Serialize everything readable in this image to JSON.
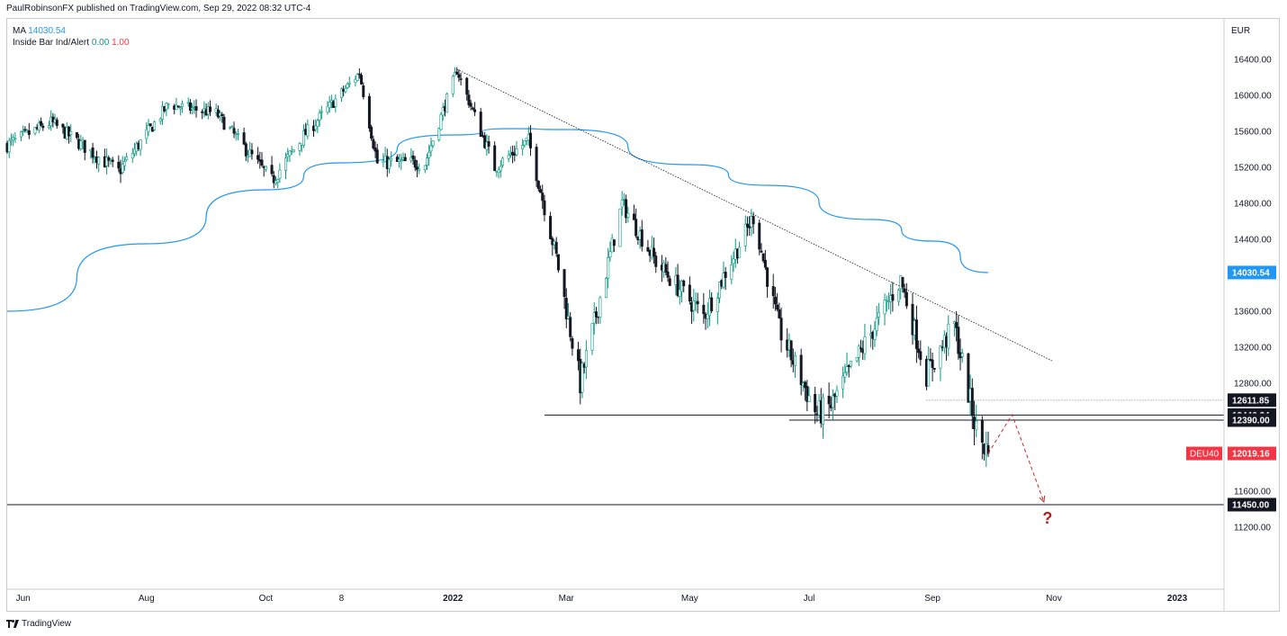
{
  "header": {
    "text": "PaulRobinsonFX published on TradingView.com, Sep 29, 2022 08:32 UTC-4"
  },
  "legend": {
    "ma_label": "MA",
    "ma_value": "14030.54",
    "ib_label": "Inside Bar Ind/Alert",
    "ib_v1": "0.00",
    "ib_v2": "1.00"
  },
  "footer": {
    "brand": "TradingView"
  },
  "colors": {
    "up": "#089981",
    "down": "#131722",
    "ma": "#2196f3",
    "alert": "#f23645",
    "projection": "#c62828"
  },
  "chart_data": {
    "type": "candlestick",
    "symbol": "DEU40",
    "currency": "EUR",
    "y_ticks": [
      11200,
      11600,
      12000,
      12400,
      12800,
      13200,
      13600,
      14000,
      14400,
      14800,
      15200,
      15600,
      16000,
      16400
    ],
    "y_range": [
      10960,
      16740
    ],
    "x_labels": [
      {
        "label": "Jun",
        "date": "2021-06-01"
      },
      {
        "label": "Aug",
        "date": "2021-08-02"
      },
      {
        "label": "Oct",
        "date": "2021-10-01"
      },
      {
        "label": "8",
        "date": "2021-11-08"
      },
      {
        "label": "2022",
        "date": "2022-01-03"
      },
      {
        "label": "Mar",
        "date": "2022-03-01"
      },
      {
        "label": "May",
        "date": "2022-05-02"
      },
      {
        "label": "Jul",
        "date": "2022-07-01"
      },
      {
        "label": "Sep",
        "date": "2022-09-01"
      },
      {
        "label": "Nov",
        "date": "2022-11-01"
      },
      {
        "label": "2023",
        "date": "2023-01-02"
      }
    ],
    "price_labels": [
      {
        "value": "14030.54",
        "kind": "ma"
      },
      {
        "value": "12611.85",
        "kind": "level"
      },
      {
        "value": "12446.24",
        "kind": "level"
      },
      {
        "value": "12390.00",
        "kind": "level"
      },
      {
        "value": "12019.16",
        "kind": "last",
        "symbol": "DEU40"
      },
      {
        "value": "11450.00",
        "kind": "level"
      }
    ],
    "closes": [
      {
        "date": "2021-05-24",
        "price": 15450
      },
      {
        "date": "2021-06-15",
        "price": 15700
      },
      {
        "date": "2021-07-19",
        "price": 15150
      },
      {
        "date": "2021-08-13",
        "price": 15900
      },
      {
        "date": "2021-09-06",
        "price": 15800
      },
      {
        "date": "2021-10-04",
        "price": 15050
      },
      {
        "date": "2021-10-20",
        "price": 15550
      },
      {
        "date": "2021-11-17",
        "price": 16250
      },
      {
        "date": "2021-11-26",
        "price": 15250
      },
      {
        "date": "2021-12-20",
        "price": 15250
      },
      {
        "date": "2022-01-05",
        "price": 16280
      },
      {
        "date": "2022-01-24",
        "price": 15200
      },
      {
        "date": "2022-02-10",
        "price": 15500
      },
      {
        "date": "2022-02-24",
        "price": 14200
      },
      {
        "date": "2022-03-08",
        "price": 12800
      },
      {
        "date": "2022-03-29",
        "price": 14800
      },
      {
        "date": "2022-04-15",
        "price": 14150
      },
      {
        "date": "2022-05-09",
        "price": 13550
      },
      {
        "date": "2022-06-03",
        "price": 14650
      },
      {
        "date": "2022-06-16",
        "price": 13400
      },
      {
        "date": "2022-07-05",
        "price": 12450
      },
      {
        "date": "2022-07-12",
        "price": 12550
      },
      {
        "date": "2022-08-16",
        "price": 13950
      },
      {
        "date": "2022-08-29",
        "price": 12900
      },
      {
        "date": "2022-09-12",
        "price": 13450
      },
      {
        "date": "2022-09-19",
        "price": 12700
      },
      {
        "date": "2022-09-23",
        "price": 12280
      },
      {
        "date": "2022-09-29",
        "price": 12019.16
      }
    ],
    "ma_line": [
      {
        "date": "2021-05-24",
        "price": 13600
      },
      {
        "date": "2021-08-02",
        "price": 14350
      },
      {
        "date": "2021-10-01",
        "price": 14950
      },
      {
        "date": "2021-11-08",
        "price": 15250
      },
      {
        "date": "2022-01-03",
        "price": 15560
      },
      {
        "date": "2022-02-01",
        "price": 15630
      },
      {
        "date": "2022-03-01",
        "price": 15620
      },
      {
        "date": "2022-05-02",
        "price": 15230
      },
      {
        "date": "2022-06-10",
        "price": 15000
      },
      {
        "date": "2022-08-01",
        "price": 14620
      },
      {
        "date": "2022-09-01",
        "price": 14380
      },
      {
        "date": "2022-09-29",
        "price": 14030.54
      }
    ],
    "trendline": [
      {
        "date": "2022-01-05",
        "price": 16290
      },
      {
        "date": "2022-10-31",
        "price": 13050
      }
    ],
    "horizontal_lines": [
      {
        "from": "2022-02-18",
        "price": 12446.24
      },
      {
        "from": "2022-06-21",
        "price": 12390.0
      },
      {
        "from": "2021-05-24",
        "price": 11450.0
      }
    ],
    "dotted_level": {
      "from": "2022-08-29",
      "price": 12611.85
    },
    "projection": [
      {
        "date": "2022-09-29",
        "price": 12019.16
      },
      {
        "date": "2022-10-11",
        "price": 12450
      },
      {
        "date": "2022-10-27",
        "price": 11480
      }
    ],
    "question_mark": "?"
  }
}
